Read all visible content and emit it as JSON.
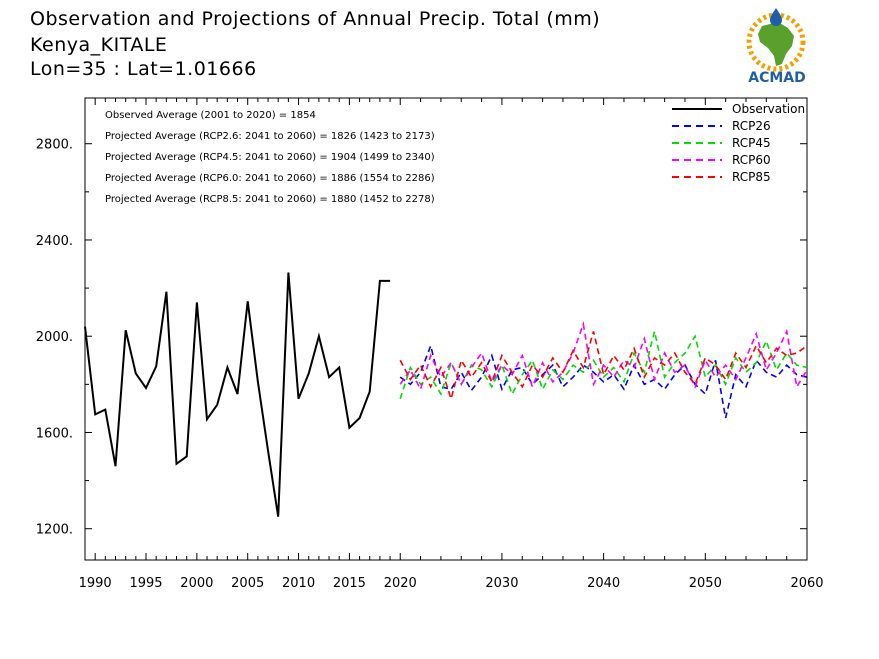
{
  "title": {
    "line1": "Observation and Projections of Annual Precip. Total (mm)",
    "line2": "Kenya_KITALE",
    "line3": "Lon=35 : Lat=1.01666"
  },
  "logo": {
    "text": "ACMAD",
    "colors": {
      "africa": "#5aa02c",
      "text": "#1f5fa8",
      "sun": "#f2a000"
    }
  },
  "chart_data": {
    "type": "line",
    "xlim": [
      1989,
      2060
    ],
    "ylim": [
      1070,
      2990
    ],
    "x_ticks": [
      1990,
      1995,
      2000,
      2005,
      2010,
      2015,
      2020,
      2030,
      2040,
      2050,
      2060
    ],
    "y_ticks": [
      1200,
      1600,
      2000,
      2400,
      2800
    ],
    "y_tick_labels": [
      "1200.",
      "1600.",
      "2000.",
      "2400.",
      "2800."
    ],
    "annotations": [
      "Observed Average (2001 to 2020) = 1854",
      "Projected Average (RCP2.6: 2041 to 2060) = 1826 (1423 to 2173)",
      "Projected Average (RCP4.5: 2041 to 2060) = 1904 (1499 to 2340)",
      "Projected Average (RCP6.0: 2041 to 2060) = 1886 (1554 to 2286)",
      "Projected Average (RCP8.5: 2041 to 2060) = 1880 (1452 to 2278)"
    ],
    "series": [
      {
        "name": "Observation",
        "color": "#000000",
        "dashed": false,
        "x": [
          1989,
          1990,
          1991,
          1992,
          1993,
          1994,
          1995,
          1996,
          1997,
          1998,
          1999,
          2000,
          2001,
          2002,
          2003,
          2004,
          2005,
          2006,
          2007,
          2008,
          2009,
          2010,
          2011,
          2012,
          2013,
          2014,
          2015,
          2016,
          2017,
          2018,
          2019
        ],
        "values": [
          2040,
          1675,
          1695,
          1460,
          2025,
          1845,
          1785,
          1875,
          2185,
          1470,
          1500,
          2140,
          1655,
          1715,
          1870,
          1760,
          2145,
          1810,
          1525,
          1250,
          2265,
          1740,
          1845,
          2000,
          1830,
          1870,
          1620,
          1660,
          1770,
          2230,
          2230
        ]
      },
      {
        "name": "RCP26",
        "color": "#0000ff",
        "dashed": true,
        "x": [
          2020,
          2021,
          2022,
          2023,
          2024,
          2025,
          2026,
          2027,
          2028,
          2029,
          2030,
          2031,
          2032,
          2033,
          2034,
          2035,
          2036,
          2037,
          2038,
          2039,
          2040,
          2041,
          2042,
          2043,
          2044,
          2045,
          2046,
          2047,
          2048,
          2049,
          2050,
          2051,
          2052,
          2053,
          2054,
          2055,
          2056,
          2057,
          2058,
          2059,
          2060
        ],
        "values": [
          1830,
          1800,
          1850,
          1960,
          1790,
          1780,
          1850,
          1775,
          1830,
          1920,
          1780,
          1860,
          1870,
          1800,
          1840,
          1880,
          1790,
          1830,
          1880,
          1850,
          1810,
          1840,
          1780,
          1880,
          1800,
          1820,
          1780,
          1840,
          1880,
          1800,
          1760,
          1900,
          1660,
          1840,
          1790,
          1900,
          1850,
          1830,
          1880,
          1840,
          1830
        ]
      },
      {
        "name": "RCP45",
        "color": "#00dd00",
        "dashed": true,
        "x": [
          2020,
          2021,
          2022,
          2023,
          2024,
          2025,
          2026,
          2027,
          2028,
          2029,
          2030,
          2031,
          2032,
          2033,
          2034,
          2035,
          2036,
          2037,
          2038,
          2039,
          2040,
          2041,
          2042,
          2043,
          2044,
          2045,
          2046,
          2047,
          2048,
          2049,
          2050,
          2051,
          2052,
          2053,
          2054,
          2055,
          2056,
          2057,
          2058,
          2059,
          2060
        ],
        "values": [
          1740,
          1870,
          1800,
          1830,
          1760,
          1890,
          1800,
          1880,
          1860,
          1790,
          1880,
          1760,
          1840,
          1900,
          1780,
          1860,
          1820,
          1880,
          1850,
          1900,
          1830,
          1870,
          1810,
          1930,
          1850,
          2020,
          1830,
          1890,
          1930,
          2000,
          1830,
          1880,
          1800,
          1910,
          1850,
          1890,
          1980,
          1860,
          1930,
          1880,
          1870
        ]
      },
      {
        "name": "RCP60",
        "color": "#ff00ff",
        "dashed": true,
        "x": [
          2020,
          2021,
          2022,
          2023,
          2024,
          2025,
          2026,
          2027,
          2028,
          2029,
          2030,
          2031,
          2032,
          2033,
          2034,
          2035,
          2036,
          2037,
          2038,
          2039,
          2040,
          2041,
          2042,
          2043,
          2044,
          2045,
          2046,
          2047,
          2048,
          2049,
          2050,
          2051,
          2052,
          2053,
          2054,
          2055,
          2056,
          2057,
          2058,
          2059,
          2060
        ],
        "values": [
          1800,
          1860,
          1780,
          1920,
          1830,
          1890,
          1800,
          1870,
          1930,
          1810,
          1880,
          1840,
          1920,
          1790,
          1890,
          1810,
          1850,
          1930,
          2050,
          1800,
          1880,
          1830,
          1900,
          1870,
          1990,
          1820,
          1930,
          1850,
          1880,
          1790,
          1900,
          1830,
          1880,
          1820,
          1910,
          2010,
          1860,
          1930,
          2020,
          1790,
          1860
        ]
      },
      {
        "name": "RCP85",
        "color": "#ff0000",
        "dashed": true,
        "x": [
          2020,
          2021,
          2022,
          2023,
          2024,
          2025,
          2026,
          2027,
          2028,
          2029,
          2030,
          2031,
          2032,
          2033,
          2034,
          2035,
          2036,
          2037,
          2038,
          2039,
          2040,
          2041,
          2042,
          2043,
          2044,
          2045,
          2046,
          2047,
          2048,
          2049,
          2050,
          2051,
          2052,
          2053,
          2054,
          2055,
          2056,
          2057,
          2058,
          2059,
          2060
        ],
        "values": [
          1900,
          1820,
          1880,
          1790,
          1870,
          1740,
          1900,
          1830,
          1890,
          1810,
          1920,
          1850,
          1790,
          1880,
          1830,
          1910,
          1850,
          1940,
          1870,
          2020,
          1840,
          1920,
          1860,
          1950,
          1830,
          1910,
          1880,
          1930,
          1850,
          1800,
          1910,
          1880,
          1820,
          1930,
          1870,
          1960,
          1890,
          1950,
          1920,
          1930,
          1960
        ]
      }
    ]
  }
}
